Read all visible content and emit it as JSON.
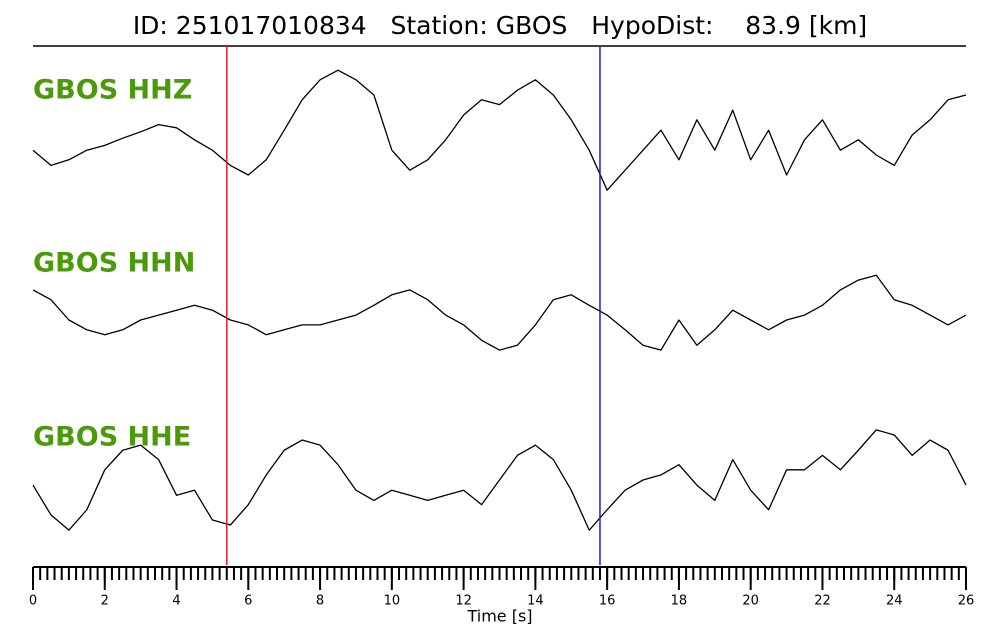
{
  "chart_data": {
    "type": "waveform",
    "title": "ID: 251017010834   Station: GBOS   HypoDist:    83.9 [km]",
    "xlabel": "Time [s]",
    "x": [
      0,
      0.5,
      1,
      1.5,
      2,
      2.5,
      3,
      3.5,
      4,
      4.5,
      5,
      5.5,
      6,
      6.5,
      7,
      7.5,
      8,
      8.5,
      9,
      9.5,
      10,
      10.5,
      11,
      11.5,
      12,
      12.5,
      13,
      13.5,
      14,
      14.5,
      15,
      15.5,
      16,
      16.5,
      17,
      17.5,
      18,
      18.5,
      19,
      19.5,
      20,
      20.5,
      21,
      21.5,
      22,
      22.5,
      23,
      23.5,
      24,
      24.5,
      25,
      25.5,
      26
    ],
    "xlim": [
      0,
      26
    ],
    "xticks": [
      0,
      2,
      4,
      6,
      8,
      10,
      12,
      14,
      16,
      18,
      20,
      22,
      24,
      26
    ],
    "xminor_step": 0.2,
    "ylim": [
      -1,
      1
    ],
    "label_color": "#4a9a0a",
    "series": [
      {
        "name": "GBOS HHZ",
        "color": "#000000",
        "values": [
          -0.19,
          -0.38,
          -0.31,
          -0.19,
          -0.13,
          -0.04,
          0.04,
          0.13,
          0.09,
          -0.06,
          -0.19,
          -0.38,
          -0.5,
          -0.31,
          0.06,
          0.44,
          0.69,
          0.81,
          0.69,
          0.5,
          -0.19,
          -0.44,
          -0.31,
          -0.06,
          0.25,
          0.44,
          0.38,
          0.56,
          0.69,
          0.5,
          0.19,
          -0.19,
          -0.69,
          -0.44,
          -0.19,
          0.06,
          -0.31,
          0.19,
          -0.19,
          0.31,
          -0.31,
          0.06,
          -0.5,
          -0.06,
          0.19,
          -0.19,
          -0.06,
          -0.25,
          -0.38,
          0,
          0.19,
          0.44,
          0.5
        ]
      },
      {
        "name": "GBOS HHN",
        "color": "#000000",
        "values": [
          0.43,
          0.29,
          0,
          -0.14,
          -0.21,
          -0.14,
          0,
          0.07,
          0.14,
          0.21,
          0.14,
          0,
          -0.07,
          -0.21,
          -0.14,
          -0.07,
          -0.07,
          0,
          0.07,
          0.21,
          0.36,
          0.43,
          0.29,
          0.07,
          -0.07,
          -0.29,
          -0.43,
          -0.36,
          -0.07,
          0.29,
          0.36,
          0.21,
          0.07,
          -0.14,
          -0.36,
          -0.43,
          0,
          -0.36,
          -0.14,
          0.14,
          0,
          -0.14,
          0,
          0.07,
          0.21,
          0.43,
          0.57,
          0.64,
          0.29,
          0.21,
          0.07,
          -0.07,
          0.07
        ]
      },
      {
        "name": "GBOS HHE",
        "color": "#000000",
        "values": [
          -0.06,
          -0.41,
          -0.59,
          -0.35,
          0.12,
          0.35,
          0.41,
          0.24,
          -0.18,
          -0.12,
          -0.47,
          -0.53,
          -0.29,
          0.06,
          0.35,
          0.47,
          0.41,
          0.18,
          -0.12,
          -0.24,
          -0.12,
          -0.18,
          -0.24,
          -0.18,
          -0.12,
          -0.29,
          0,
          0.29,
          0.41,
          0.24,
          -0.12,
          -0.59,
          -0.35,
          -0.12,
          0,
          0.06,
          0.18,
          -0.06,
          -0.24,
          0.24,
          -0.12,
          -0.35,
          0.12,
          0.12,
          0.29,
          0.12,
          0.35,
          0.59,
          0.53,
          0.29,
          0.47,
          0.35,
          -0.06
        ]
      }
    ],
    "markers": [
      {
        "x": 5.4,
        "color": "#e02020"
      },
      {
        "x": 15.8,
        "color": "#2020c0"
      }
    ]
  }
}
